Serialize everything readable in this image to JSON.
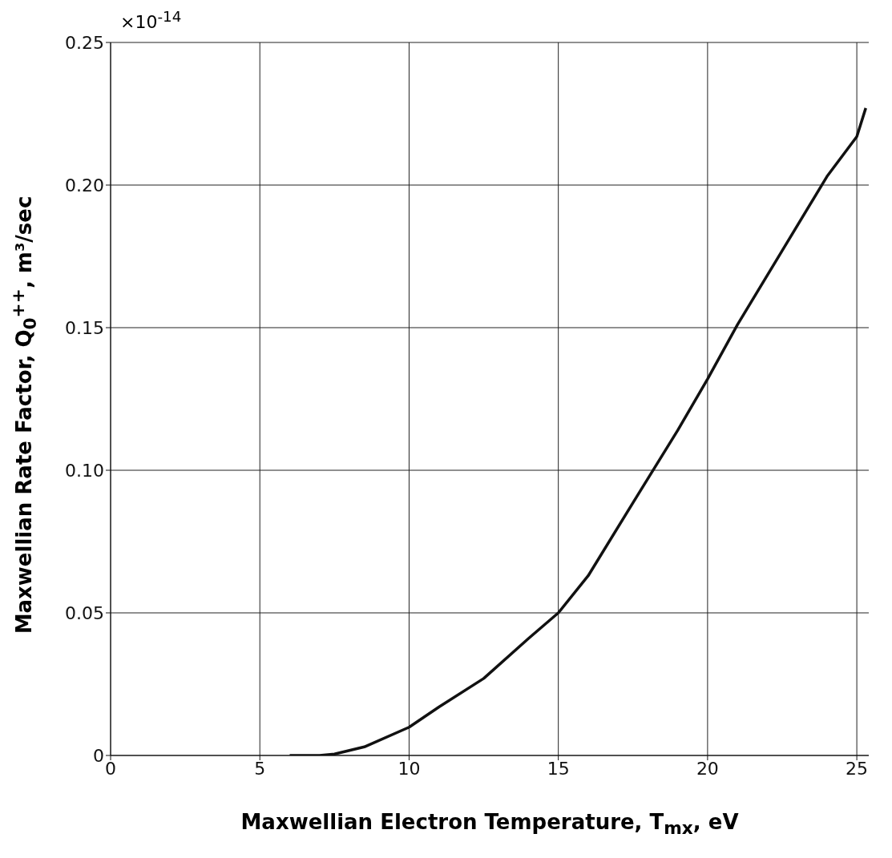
{
  "chart_data": {
    "type": "line",
    "xlabel": "Maxwellian Electron Temperature, T$_{mx}$, eV",
    "ylabel": "Maxwellian Rate Factor, Q$_{0}$$^{++}$, m³/sec",
    "annotations": [
      "×10$^{-14}$"
    ],
    "x": [
      6,
      7,
      7.5,
      8.5,
      10,
      11,
      12.5,
      14,
      15,
      16,
      17.5,
      19,
      20,
      21,
      22.5,
      24,
      25,
      25.3
    ],
    "series": [
      {
        "color": "#111111",
        "values": [
          0,
          0,
          0.0005,
          0.003,
          0.0099,
          0.017,
          0.027,
          0.041,
          0.05,
          0.063,
          0.0886,
          0.114,
          0.132,
          0.151,
          0.177,
          0.203,
          0.217,
          0.227
        ]
      }
    ],
    "xlim": [
      0,
      25.4
    ],
    "xticks": [
      0,
      5,
      10,
      15,
      20,
      25
    ],
    "ylim": [
      0,
      0.25
    ],
    "yticks": [
      0,
      0.05,
      {
        "value": 0.1,
        "label": "0.10"
      },
      0.15,
      {
        "value": 0.2,
        "label": "0.20"
      },
      0.25
    ],
    "grid": true,
    "line_style": "solid",
    "marker": "none"
  }
}
